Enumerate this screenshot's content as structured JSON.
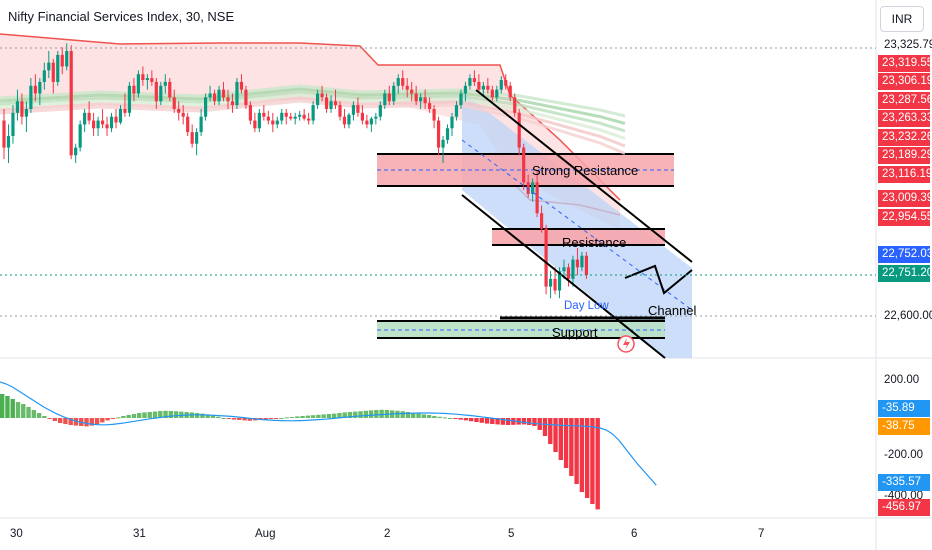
{
  "header": {
    "title": "Nifty Financial Services Index, 30, NSE",
    "currency_button": "INR"
  },
  "price_axis": {
    "plain_labels": [
      "23,325.79",
      "22,600.00"
    ],
    "tags": [
      {
        "label": "23,319.55",
        "color": "#f23645"
      },
      {
        "label": "23,306.19",
        "color": "#f23645"
      },
      {
        "label": "23,287.56",
        "color": "#f23645"
      },
      {
        "label": "23,263.33",
        "color": "#f23645"
      },
      {
        "label": "23,232.26",
        "color": "#f23645"
      },
      {
        "label": "23,189.29",
        "color": "#f23645"
      },
      {
        "label": "23,116.19",
        "color": "#f23645"
      },
      {
        "label": "23,009.39",
        "color": "#f23645"
      },
      {
        "label": "22,954.55",
        "color": "#f23645"
      },
      {
        "label": "22,752.03",
        "color": "#2962ff"
      },
      {
        "label": "22,751.20",
        "color": "#089981"
      }
    ]
  },
  "indicator_axis": {
    "plain_labels": [
      "200.00",
      "-200.00",
      "-400.00"
    ],
    "tags": [
      {
        "label": "-35.89",
        "color": "#2196f3"
      },
      {
        "label": "-38.75",
        "color": "#ff9800"
      },
      {
        "label": "-335.57",
        "color": "#2196f3"
      },
      {
        "label": "-456.97",
        "color": "#f23645"
      }
    ]
  },
  "time_axis": [
    "30",
    "31",
    "Aug",
    "2",
    "5",
    "6",
    "7"
  ],
  "annotations": {
    "strong_resistance": "Strong Resistance",
    "resistance": "Resistance",
    "support": "Support",
    "channel": "Channel",
    "day_low": "Day Low"
  },
  "colors": {
    "up": "#089981",
    "down": "#f23645",
    "ema_band": "#a5d6a7",
    "cloud": "#fde0e0",
    "channel_fill": "#bbd3f7",
    "resistance_fill": "#f7a6ab",
    "support_fill": "#b8dfc4",
    "signal_line": "#2196f3"
  },
  "chart_data": {
    "type": "candlestick",
    "price_range": [
      22530,
      23400
    ],
    "candles": [
      [
        23150,
        23180,
        23050,
        23080
      ],
      [
        23080,
        23140,
        23040,
        23110
      ],
      [
        23110,
        23190,
        23090,
        23170
      ],
      [
        23170,
        23230,
        23150,
        23200
      ],
      [
        23200,
        23220,
        23140,
        23160
      ],
      [
        23160,
        23200,
        23120,
        23180
      ],
      [
        23180,
        23260,
        23170,
        23240
      ],
      [
        23240,
        23270,
        23200,
        23220
      ],
      [
        23220,
        23260,
        23190,
        23250
      ],
      [
        23250,
        23300,
        23230,
        23280
      ],
      [
        23280,
        23330,
        23260,
        23300
      ],
      [
        23300,
        23310,
        23220,
        23250
      ],
      [
        23250,
        23330,
        23240,
        23320
      ],
      [
        23320,
        23340,
        23270,
        23290
      ],
      [
        23290,
        23350,
        23280,
        23330
      ],
      [
        23330,
        23345,
        23050,
        23060
      ],
      [
        23060,
        23090,
        23040,
        23080
      ],
      [
        23080,
        23150,
        23070,
        23140
      ],
      [
        23140,
        23180,
        23120,
        23170
      ],
      [
        23170,
        23200,
        23140,
        23150
      ],
      [
        23150,
        23170,
        23110,
        23130
      ],
      [
        23130,
        23160,
        23110,
        23150
      ],
      [
        23150,
        23180,
        23130,
        23140
      ],
      [
        23140,
        23160,
        23110,
        23130
      ],
      [
        23130,
        23170,
        23120,
        23160
      ],
      [
        23160,
        23180,
        23130,
        23145
      ],
      [
        23145,
        23190,
        23140,
        23180
      ],
      [
        23180,
        23220,
        23160,
        23170
      ],
      [
        23170,
        23250,
        23160,
        23240
      ],
      [
        23240,
        23260,
        23200,
        23220
      ],
      [
        23220,
        23280,
        23210,
        23270
      ],
      [
        23270,
        23290,
        23240,
        23255
      ],
      [
        23255,
        23270,
        23230,
        23260
      ],
      [
        23260,
        23280,
        23240,
        23250
      ],
      [
        23250,
        23260,
        23180,
        23200
      ],
      [
        23200,
        23250,
        23190,
        23240
      ],
      [
        23240,
        23270,
        23220,
        23250
      ],
      [
        23250,
        23260,
        23200,
        23210
      ],
      [
        23210,
        23230,
        23170,
        23180
      ],
      [
        23180,
        23200,
        23150,
        23170
      ],
      [
        23170,
        23190,
        23140,
        23160
      ],
      [
        23160,
        23170,
        23110,
        23120
      ],
      [
        23120,
        23140,
        23080,
        23090
      ],
      [
        23090,
        23130,
        23060,
        23120
      ],
      [
        23120,
        23180,
        23110,
        23160
      ],
      [
        23160,
        23220,
        23150,
        23210
      ],
      [
        23210,
        23240,
        23200,
        23220
      ],
      [
        23220,
        23230,
        23190,
        23200
      ],
      [
        23200,
        23240,
        23190,
        23230
      ],
      [
        23230,
        23250,
        23200,
        23210
      ],
      [
        23210,
        23230,
        23180,
        23200
      ],
      [
        23200,
        23220,
        23170,
        23190
      ],
      [
        23190,
        23260,
        23180,
        23250
      ],
      [
        23250,
        23270,
        23220,
        23230
      ],
      [
        23230,
        23240,
        23180,
        23190
      ],
      [
        23190,
        23200,
        23140,
        23150
      ],
      [
        23150,
        23170,
        23120,
        23130
      ],
      [
        23130,
        23180,
        23120,
        23170
      ],
      [
        23170,
        23190,
        23150,
        23160
      ],
      [
        23160,
        23175,
        23140,
        23150
      ],
      [
        23150,
        23170,
        23120,
        23140
      ],
      [
        23140,
        23160,
        23130,
        23150
      ],
      [
        23150,
        23180,
        23140,
        23170
      ],
      [
        23170,
        23180,
        23140,
        23160
      ],
      [
        23160,
        23170,
        23150,
        23155
      ],
      [
        23155,
        23170,
        23140,
        23160
      ],
      [
        23160,
        23175,
        23150,
        23165
      ],
      [
        23165,
        23180,
        23150,
        23155
      ],
      [
        23155,
        23170,
        23140,
        23150
      ],
      [
        23150,
        23200,
        23140,
        23190
      ],
      [
        23190,
        23230,
        23180,
        23220
      ],
      [
        23220,
        23240,
        23200,
        23210
      ],
      [
        23210,
        23220,
        23170,
        23180
      ],
      [
        23180,
        23215,
        23170,
        23200
      ],
      [
        23200,
        23230,
        23180,
        23190
      ],
      [
        23190,
        23200,
        23150,
        23160
      ],
      [
        23160,
        23180,
        23130,
        23140
      ],
      [
        23140,
        23170,
        23130,
        23165
      ],
      [
        23165,
        23200,
        23150,
        23190
      ],
      [
        23190,
        23210,
        23160,
        23170
      ],
      [
        23170,
        23190,
        23140,
        23150
      ],
      [
        23150,
        23165,
        23130,
        23140
      ],
      [
        23140,
        23160,
        23120,
        23155
      ],
      [
        23155,
        23170,
        23140,
        23160
      ],
      [
        23160,
        23200,
        23150,
        23190
      ],
      [
        23190,
        23230,
        23180,
        23220
      ],
      [
        23220,
        23240,
        23190,
        23200
      ],
      [
        23200,
        23250,
        23190,
        23240
      ],
      [
        23240,
        23270,
        23220,
        23260
      ],
      [
        23260,
        23280,
        23230,
        23240
      ],
      [
        23240,
        23260,
        23210,
        23230
      ],
      [
        23230,
        23250,
        23200,
        23220
      ],
      [
        23220,
        23240,
        23190,
        23200
      ],
      [
        23200,
        23220,
        23180,
        23210
      ],
      [
        23210,
        23230,
        23180,
        23195
      ],
      [
        23195,
        23210,
        23170,
        23180
      ],
      [
        23180,
        23190,
        23130,
        23150
      ],
      [
        23150,
        23160,
        23060,
        23080
      ],
      [
        23080,
        23110,
        23040,
        23100
      ],
      [
        23100,
        23140,
        23090,
        23130
      ],
      [
        23130,
        23170,
        23110,
        23160
      ],
      [
        23160,
        23200,
        23150,
        23190
      ],
      [
        23190,
        23230,
        23180,
        23220
      ],
      [
        23220,
        23250,
        23200,
        23240
      ],
      [
        23240,
        23270,
        23230,
        23260
      ],
      [
        23260,
        23280,
        23240,
        23250
      ],
      [
        23250,
        23270,
        23220,
        23230
      ],
      [
        23230,
        23250,
        23210,
        23240
      ],
      [
        23240,
        23260,
        23220,
        23230
      ],
      [
        23230,
        23240,
        23200,
        23210
      ],
      [
        23210,
        23240,
        23200,
        23230
      ],
      [
        23230,
        23265,
        23220,
        23255
      ],
      [
        23255,
        23270,
        23230,
        23240
      ],
      [
        23240,
        23250,
        23200,
        23210
      ],
      [
        23210,
        23220,
        23160,
        23170
      ],
      [
        23170,
        23180,
        23060,
        23080
      ],
      [
        23080,
        23090,
        22970,
        22990
      ],
      [
        22990,
        23010,
        22950,
        22960
      ],
      [
        22960,
        23000,
        22940,
        22990
      ],
      [
        22990,
        23020,
        22900,
        22910
      ],
      [
        22910,
        22930,
        22860,
        22870
      ],
      [
        22870,
        22880,
        22700,
        22720
      ],
      [
        22720,
        22760,
        22690,
        22740
      ],
      [
        22740,
        22770,
        22700,
        22710
      ],
      [
        22710,
        22770,
        22690,
        22760
      ],
      [
        22760,
        22790,
        22740,
        22770
      ],
      [
        22770,
        22780,
        22720,
        22740
      ],
      [
        22740,
        22800,
        22720,
        22790
      ],
      [
        22790,
        22820,
        22750,
        22770
      ],
      [
        22770,
        22810,
        22760,
        22800
      ],
      [
        22800,
        22810,
        22740,
        22750
      ]
    ],
    "indicator": {
      "name": "MACD",
      "range": [
        -470,
        260
      ],
      "histogram": [
        120,
        110,
        95,
        80,
        70,
        55,
        40,
        25,
        10,
        -5,
        -15,
        -25,
        -30,
        -35,
        -38,
        -40,
        -42,
        -38,
        -30,
        -22,
        -12,
        -5,
        3,
        10,
        15,
        20,
        25,
        28,
        30,
        32,
        35,
        36,
        35,
        34,
        32,
        30,
        28,
        25,
        22,
        18,
        12,
        6,
        0,
        -5,
        -8,
        -10,
        -12,
        -14,
        -12,
        -10,
        -8,
        -5,
        -3,
        0,
        3,
        5,
        8,
        10,
        12,
        14,
        16,
        18,
        20,
        22,
        25,
        28,
        30,
        32,
        34,
        36,
        38,
        40,
        41,
        40,
        38,
        36,
        34,
        30,
        26,
        22,
        18,
        15,
        10,
        6,
        3,
        0,
        -4,
        -8,
        -12,
        -16,
        -20,
        -24,
        -28,
        -30,
        -32,
        -34,
        -35,
        -34,
        -33,
        -32,
        -35,
        -40,
        -60,
        -90,
        -130,
        -170,
        -210,
        -250,
        -290,
        -330,
        -370,
        -400,
        -430,
        -456.97
      ],
      "macd_line": [
        180,
        170,
        155,
        135,
        115,
        95,
        75,
        55,
        38,
        22,
        8,
        -4,
        -14,
        -22,
        -28,
        -32,
        -34,
        -34,
        -32,
        -28,
        -24,
        -19,
        -14,
        -9,
        -4,
        0,
        4,
        8,
        11,
        13,
        15,
        16,
        16,
        15,
        14,
        12,
        10,
        8,
        5,
        2,
        -2,
        -5,
        -8,
        -10,
        -12,
        -13,
        -14,
        -14,
        -13,
        -12,
        -10,
        -8,
        -6,
        -3,
        0,
        3,
        6,
        9,
        11,
        13,
        15,
        17,
        19,
        21,
        22,
        23,
        24,
        25,
        25,
        25,
        24,
        23,
        21,
        19,
        16,
        13,
        10,
        6,
        2,
        -2,
        -6,
        -10,
        -14,
        -18,
        -22,
        -26,
        -29,
        -31,
        -33,
        -35,
        -37,
        -38,
        -39,
        -40,
        -42,
        -45,
        -50,
        -60,
        -80,
        -110,
        -150,
        -190,
        -230,
        -265,
        -300,
        -335.57
      ]
    }
  }
}
